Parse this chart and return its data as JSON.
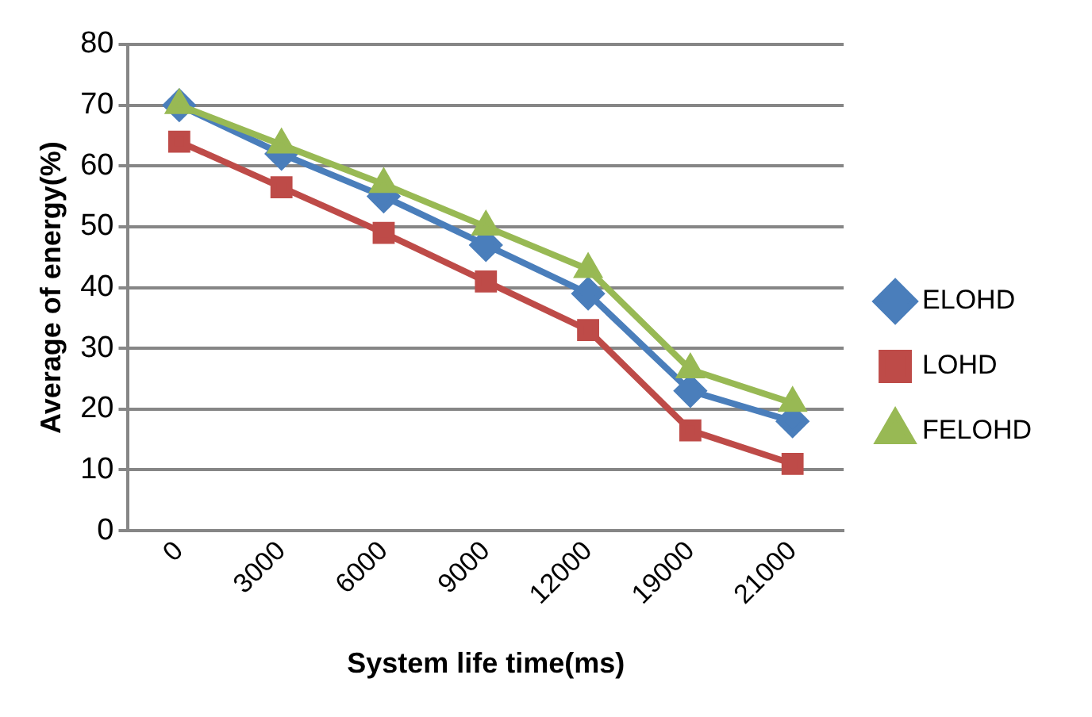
{
  "chart_data": {
    "type": "line",
    "xlabel": "System life time(ms)",
    "ylabel": "Average of energy(%)",
    "categories": [
      "0",
      "3000",
      "6000",
      "9000",
      "12000",
      "19000",
      "21000"
    ],
    "series": [
      {
        "name": "ELOHD",
        "color": "#4a7ebb",
        "marker": "diamond",
        "values": [
          70,
          62,
          55,
          47,
          39,
          23,
          18
        ]
      },
      {
        "name": "LOHD",
        "color": "#be4b48",
        "marker": "square",
        "values": [
          64,
          56.5,
          49,
          41,
          33,
          16.5,
          11
        ]
      },
      {
        "name": "FELOHD",
        "color": "#98b954",
        "marker": "triangle",
        "values": [
          70,
          63.5,
          57,
          50,
          43,
          26.5,
          21
        ]
      }
    ],
    "ylim": [
      0,
      80
    ],
    "yticks": [
      0,
      10,
      20,
      30,
      40,
      50,
      60,
      70,
      80
    ],
    "grid": "y",
    "legend": "right"
  }
}
